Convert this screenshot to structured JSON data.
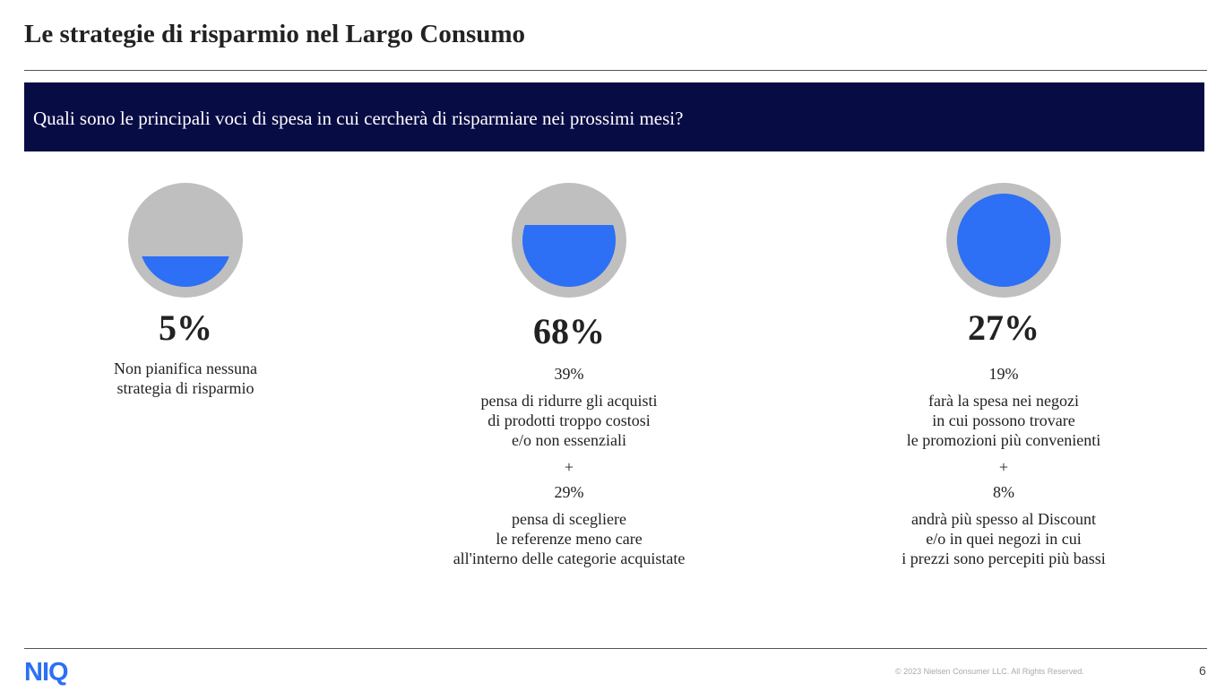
{
  "title": "Le strategie di risparmio nel Largo Consumo",
  "question": "Quali sono le principali voci di spesa in cui cercherà di risparmiare nei prossimi mesi?",
  "columns": [
    {
      "percent": "5%",
      "value": 5,
      "lines": [
        "Non pianifica nessuna",
        "strategia di risparmio"
      ]
    },
    {
      "percent": "68%",
      "value": 68,
      "sub1": "39%",
      "desc1": [
        "pensa di ridurre gli acquisti",
        "di prodotti troppo costosi",
        "e/o non essenziali"
      ],
      "plus": "+",
      "sub2": "29%",
      "desc2": [
        "pensa di scegliere",
        "le referenze meno care",
        "all'interno delle categorie acquistate"
      ]
    },
    {
      "percent": "27%",
      "value": 27,
      "sub1": "19%",
      "desc1": [
        "farà la spesa nei negozi",
        "in cui possono trovare",
        "le promozioni più convenienti"
      ],
      "plus": "+",
      "sub2": "8%",
      "desc2": [
        "andrà più spesso al Discount",
        "e/o in quei negozi in cui",
        "i prezzi sono percepiti più bassi"
      ]
    }
  ],
  "footer": {
    "logo": "NIQ",
    "copyright": "© 2023 Nielsen Consumer LLC. All Rights Reserved.",
    "page": "6"
  },
  "colors": {
    "banner": "#070c45",
    "accent": "#2d6ff5",
    "gray": "#bfbfbf"
  }
}
